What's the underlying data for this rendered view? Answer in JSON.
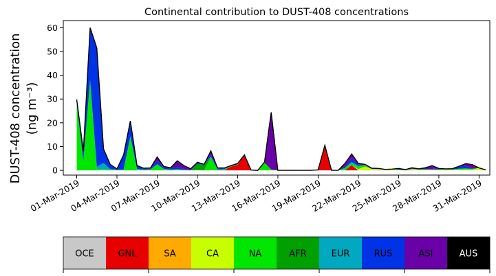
{
  "chart_data": {
    "type": "area",
    "stacked": true,
    "title": "Continental contribution to DUST-408 concentrations",
    "ylabel_line1": "DUST-408 concentration",
    "ylabel_line2": "(ng m⁻³)",
    "xlabel": "",
    "ylim": [
      -2,
      63
    ],
    "yticks": [
      0,
      10,
      20,
      30,
      40,
      50,
      60
    ],
    "xlim": [
      0,
      31.8
    ],
    "xticks": [
      {
        "x": 1,
        "label": "01-Mar-2019"
      },
      {
        "x": 4,
        "label": "04-Mar-2019"
      },
      {
        "x": 7,
        "label": "07-Mar-2019"
      },
      {
        "x": 10,
        "label": "10-Mar-2019"
      },
      {
        "x": 13,
        "label": "13-Mar-2019"
      },
      {
        "x": 16,
        "label": "16-Mar-2019"
      },
      {
        "x": 19,
        "label": "19-Mar-2019"
      },
      {
        "x": 22,
        "label": "22-Mar-2019"
      },
      {
        "x": 25,
        "label": "25-Mar-2019"
      },
      {
        "x": 28,
        "label": "28-Mar-2019"
      },
      {
        "x": 31,
        "label": "31-Mar-2019"
      }
    ],
    "x": [
      1.0,
      1.5,
      2.0,
      2.5,
      3.0,
      3.5,
      4.0,
      4.5,
      5.0,
      5.5,
      6.0,
      6.5,
      7.0,
      7.5,
      8.0,
      8.5,
      9.0,
      9.5,
      10.0,
      10.5,
      11.0,
      11.5,
      12.0,
      12.5,
      13.0,
      13.5,
      14.0,
      14.5,
      15.0,
      15.5,
      16.0,
      16.5,
      17.0,
      17.5,
      18.0,
      18.5,
      19.0,
      19.5,
      20.0,
      20.5,
      21.0,
      21.5,
      22.0,
      22.5,
      23.0,
      23.5,
      24.0,
      24.5,
      25.0,
      25.5,
      26.0,
      26.5,
      27.0,
      27.5,
      28.0,
      28.5,
      29.0,
      29.5,
      30.0,
      30.5,
      31.0,
      31.5
    ],
    "series": [
      {
        "name": "OCE",
        "color": "#c8c8c8",
        "values": [
          0,
          0,
          0,
          0,
          0,
          0,
          0,
          0,
          0,
          0,
          0,
          0,
          0,
          0,
          0,
          0,
          0,
          0,
          0,
          0,
          0,
          0,
          0,
          0,
          0,
          0,
          0,
          0,
          0,
          0,
          0,
          0,
          0,
          0,
          0,
          0,
          0,
          0,
          0,
          0,
          0,
          0,
          0,
          0,
          0,
          0,
          0,
          0,
          0,
          0,
          0,
          0,
          0,
          0,
          0,
          0,
          0,
          0,
          0,
          0,
          0,
          0
        ]
      },
      {
        "name": "GNL",
        "color": "#e60000",
        "values": [
          0,
          0,
          0,
          0,
          0,
          0,
          0,
          0,
          0,
          0,
          0,
          0,
          0,
          0,
          0,
          0,
          0,
          0,
          0,
          0,
          0,
          0,
          0.1,
          1.6,
          2.3,
          6.5,
          0,
          0,
          0,
          0,
          0,
          0,
          0,
          0,
          0,
          0,
          0.2,
          10.5,
          0,
          0,
          0,
          2.2,
          0,
          0,
          0,
          0,
          0,
          0,
          0,
          0,
          0,
          0,
          0,
          0,
          0,
          0,
          0,
          0,
          0,
          0,
          0,
          0
        ]
      },
      {
        "name": "SA",
        "color": "#ffaa00",
        "values": [
          0,
          0,
          0,
          0,
          0,
          0,
          0,
          0,
          0,
          0,
          0,
          0,
          0,
          0,
          0,
          0,
          0,
          0,
          0,
          0,
          0,
          0,
          0,
          0,
          0,
          0,
          0,
          0,
          0,
          0,
          0,
          0,
          0,
          0,
          0,
          0,
          0,
          0,
          0,
          0,
          0,
          0,
          0,
          0.2,
          0.2,
          0.3,
          0.1,
          0.2,
          0,
          0,
          0.2,
          0,
          0,
          0,
          0,
          0,
          0,
          0,
          0,
          0,
          0,
          0
        ]
      },
      {
        "name": "CA",
        "color": "#c8ff00",
        "values": [
          0,
          0,
          0,
          0,
          0,
          0,
          0,
          0,
          0,
          0,
          0,
          0,
          0,
          0,
          0,
          0,
          0,
          0,
          0,
          0,
          0,
          0,
          0,
          0,
          0,
          0,
          0,
          0,
          0,
          0,
          0,
          0,
          0,
          0,
          0,
          0,
          0,
          0,
          0,
          0,
          0,
          0,
          0.5,
          1.4,
          0.3,
          0.2,
          0.2,
          0.2,
          0.1,
          0,
          0.3,
          0.3,
          0.2,
          0.2,
          0.3,
          0.4,
          0.2,
          0.2,
          0.3,
          0.3,
          1.0,
          0.2
        ]
      },
      {
        "name": "NA",
        "color": "#00e600",
        "values": [
          28,
          4,
          38,
          0.5,
          0.5,
          0.3,
          0.2,
          0.2,
          14,
          0.4,
          0.2,
          0.3,
          2.5,
          0.5,
          0.3,
          0.5,
          0.2,
          0,
          0.2,
          0,
          5.5,
          0.3,
          0.2,
          0.2,
          0.2,
          0,
          0.1,
          0,
          3.2,
          0.4,
          0,
          0,
          0,
          0,
          0,
          0,
          0,
          0,
          0,
          0,
          1.0,
          0.8,
          1.2,
          0.5,
          0.2,
          0.1,
          0.1,
          0.1,
          0.2,
          0.1,
          0,
          0.1,
          0.2,
          0.2,
          0,
          0,
          0.2,
          0.5,
          0.5,
          0.3,
          0,
          0
        ]
      },
      {
        "name": "AFR",
        "color": "#00a000",
        "values": [
          0,
          0,
          0,
          0,
          0,
          0,
          0,
          0,
          0,
          0,
          0,
          0,
          0,
          0,
          0,
          0,
          0,
          0,
          2.6,
          2.3,
          0,
          0,
          0,
          0,
          0,
          0,
          0,
          0,
          0,
          0,
          0,
          0,
          0,
          0,
          0,
          0,
          0,
          0,
          0,
          0,
          0,
          0,
          0,
          0,
          0,
          0,
          0,
          0,
          0,
          0,
          0,
          0,
          0,
          0,
          0,
          0,
          0,
          0,
          0,
          0,
          0,
          0
        ]
      },
      {
        "name": "EUR",
        "color": "#00a8c0",
        "values": [
          0,
          0,
          0,
          1.0,
          2.5,
          0.2,
          0.1,
          0.1,
          0.3,
          0.2,
          0.1,
          0.1,
          0.1,
          0.1,
          0,
          0,
          0,
          0,
          0,
          0,
          0.2,
          0.1,
          0.2,
          0,
          0,
          0,
          0,
          0,
          0,
          0,
          0,
          0,
          0,
          0,
          0,
          0,
          0,
          0,
          0,
          0,
          0,
          0.5,
          0.2,
          0.1,
          0,
          0,
          0,
          0,
          0,
          0,
          0.1,
          0,
          0,
          0,
          0,
          0,
          0,
          0,
          0,
          0,
          0,
          0
        ]
      },
      {
        "name": "RUS",
        "color": "#0033e6",
        "values": [
          1.8,
          4.0,
          22.0,
          50.0,
          6.0,
          2.0,
          0.3,
          6.0,
          6.0,
          1.0,
          0.3,
          0.3,
          1.5,
          0.5,
          0.5,
          1.0,
          0.3,
          0.2,
          0.3,
          0.2,
          1.0,
          0.3,
          0.3,
          0,
          0.2,
          0,
          0,
          0,
          0,
          0,
          0,
          0,
          0,
          0,
          0,
          0,
          0,
          0,
          0,
          0,
          0.4,
          1.6,
          0.5,
          0.1,
          0.1,
          0.1,
          0,
          0,
          0.3,
          0,
          0.2,
          0.2,
          0.2,
          0.2,
          0.5,
          0.2,
          0.3,
          1.0,
          1.0,
          0.2,
          0,
          0
        ]
      },
      {
        "name": "ASI",
        "color": "#6a00a8",
        "values": [
          0,
          0,
          0,
          0,
          0,
          0,
          0,
          0.2,
          0.5,
          0.4,
          0.3,
          0.3,
          1.5,
          0.5,
          0.3,
          2.5,
          1.5,
          0.5,
          0.3,
          0,
          1.5,
          0.3,
          0.2,
          0.2,
          0.2,
          0,
          0,
          0,
          0.3,
          24.0,
          0,
          0,
          0,
          0,
          0,
          0,
          0,
          0,
          0,
          0,
          1.5,
          1.8,
          0.5,
          0.2,
          0.1,
          0.1,
          0,
          0,
          0.2,
          0.2,
          0.3,
          0,
          0.5,
          1.4,
          0,
          0,
          0,
          0,
          1.0,
          1.6,
          0,
          0
        ]
      },
      {
        "name": "AUS",
        "color": "#000000",
        "values": [
          0,
          0,
          0,
          0,
          0,
          0,
          0,
          0,
          0,
          0,
          0,
          0,
          0,
          0,
          0,
          0,
          0,
          0,
          0,
          0,
          0,
          0,
          0,
          0,
          0,
          0,
          0,
          0,
          0,
          0,
          0,
          0,
          0,
          0,
          0,
          0,
          0,
          0,
          0,
          0,
          0,
          0,
          0,
          0,
          0,
          0,
          0,
          0,
          0,
          0,
          0,
          0,
          0,
          0,
          0,
          0,
          0,
          0,
          0,
          0,
          0,
          0
        ]
      }
    ],
    "legend": [
      {
        "label": "OCE",
        "color": "#c8c8c8",
        "text_color": "#000000"
      },
      {
        "label": "GNL",
        "color": "#e60000",
        "text_color": "#000000"
      },
      {
        "label": "SA",
        "color": "#ffaa00",
        "text_color": "#000000"
      },
      {
        "label": "CA",
        "color": "#c8ff00",
        "text_color": "#000000"
      },
      {
        "label": "NA",
        "color": "#00e600",
        "text_color": "#000000"
      },
      {
        "label": "AFR",
        "color": "#00a000",
        "text_color": "#000000"
      },
      {
        "label": "EUR",
        "color": "#00a8c0",
        "text_color": "#000000"
      },
      {
        "label": "RUS",
        "color": "#0033e6",
        "text_color": "#000000"
      },
      {
        "label": "ASI",
        "color": "#6a00a8",
        "text_color": "#000000"
      },
      {
        "label": "AUS",
        "color": "#000000",
        "text_color": "#ffffff"
      }
    ],
    "legend_placement": "bottom colorbar",
    "grid": false
  }
}
